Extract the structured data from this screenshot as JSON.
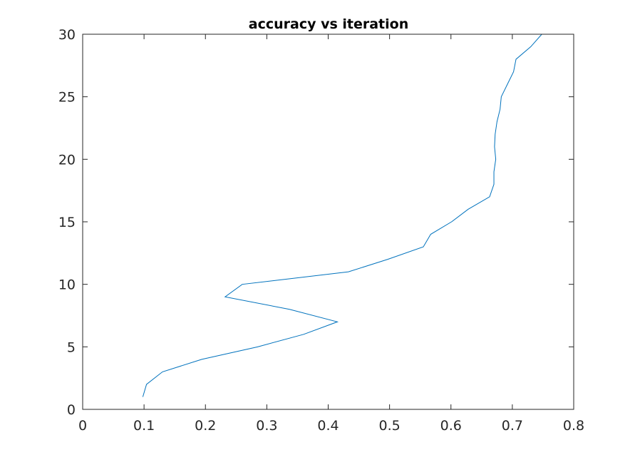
{
  "chart_data": {
    "type": "line",
    "title": "accuracy vs iteration",
    "xlabel": "",
    "ylabel": "",
    "xlim": [
      0,
      0.8
    ],
    "ylim": [
      0,
      30
    ],
    "xticks": [
      0,
      0.1,
      0.2,
      0.3,
      0.4,
      0.5,
      0.6,
      0.7,
      0.8
    ],
    "yticks": [
      0,
      5,
      10,
      15,
      20,
      25,
      30
    ],
    "xtick_labels": [
      "0",
      "0.1",
      "0.2",
      "0.3",
      "0.4",
      "0.5",
      "0.6",
      "0.7",
      "0.8"
    ],
    "ytick_labels": [
      "0",
      "5",
      "10",
      "15",
      "20",
      "25",
      "30"
    ],
    "grid": false,
    "series_color": "#0072BD",
    "series": [
      {
        "x": [
          0.098,
          0.104,
          0.13,
          0.194,
          0.285,
          0.36,
          0.415,
          0.337,
          0.232,
          0.26,
          0.433,
          0.497,
          0.555,
          0.567,
          0.601,
          0.628,
          0.663,
          0.67,
          0.67,
          0.673,
          0.671,
          0.672,
          0.675,
          0.68,
          0.682,
          0.692,
          0.702,
          0.706,
          0.73,
          0.748
        ],
        "y": [
          1,
          2,
          3,
          4,
          5,
          6,
          7,
          8,
          9,
          10,
          11,
          12,
          13,
          14,
          15,
          16,
          17,
          18,
          19,
          20,
          21,
          22,
          23,
          24,
          25,
          26,
          27,
          28,
          29,
          30
        ]
      }
    ]
  }
}
